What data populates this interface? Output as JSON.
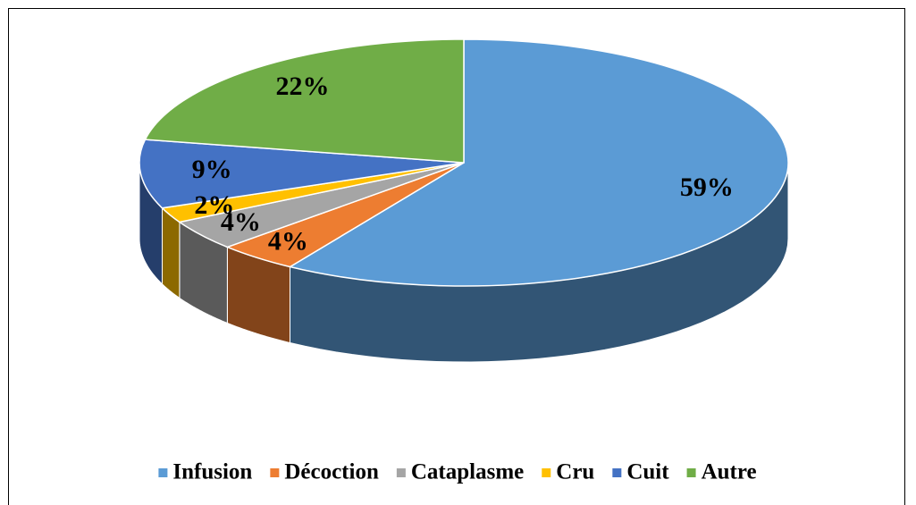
{
  "chart_data": {
    "type": "pie",
    "categories": [
      "Infusion",
      "Décoction",
      "Cataplasme",
      "Cru",
      "Cuit",
      "Autre"
    ],
    "values": [
      59,
      4,
      4,
      2,
      9,
      22
    ],
    "value_labels": [
      "59%",
      "4%",
      "4%",
      "2%",
      "9%",
      "22%"
    ],
    "colors": [
      "#5b9bd5",
      "#ed7d31",
      "#a5a5a5",
      "#ffc000",
      "#4472c4",
      "#70ad47"
    ],
    "legend": "bottom"
  }
}
